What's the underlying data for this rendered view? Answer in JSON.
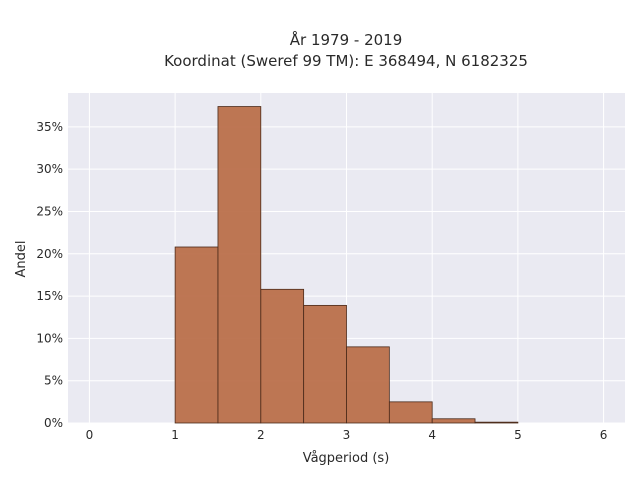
{
  "chart_data": {
    "type": "bar",
    "title": "År 1979 - 2019",
    "subtitle": "Koordinat (Sweref 99 TM): E 368494, N 6182325",
    "xlabel": "Vågperiod (s)",
    "ylabel": "Andel",
    "bin_edges": [
      1.0,
      1.5,
      2.0,
      2.5,
      3.0,
      3.5,
      4.0,
      4.5,
      5.0
    ],
    "values": [
      20.8,
      37.4,
      15.8,
      13.9,
      9.0,
      2.5,
      0.5,
      0.1
    ],
    "xlim": [
      -0.25,
      6.25
    ],
    "ylim": [
      0,
      39
    ],
    "xticks": [
      0,
      1,
      2,
      3,
      4,
      5,
      6
    ],
    "xtick_labels": [
      "0",
      "1",
      "2",
      "3",
      "4",
      "5",
      "6"
    ],
    "yticks": [
      0,
      5,
      10,
      15,
      20,
      25,
      30,
      35
    ],
    "ytick_labels": [
      "0%",
      "5%",
      "10%",
      "15%",
      "20%",
      "25%",
      "30%",
      "35%"
    ],
    "grid": true,
    "colors": {
      "bar": "#b86b45",
      "bar_edge": "#4a2a1a",
      "plot_bg": "#eaeaf2",
      "grid": "#ffffff"
    }
  }
}
